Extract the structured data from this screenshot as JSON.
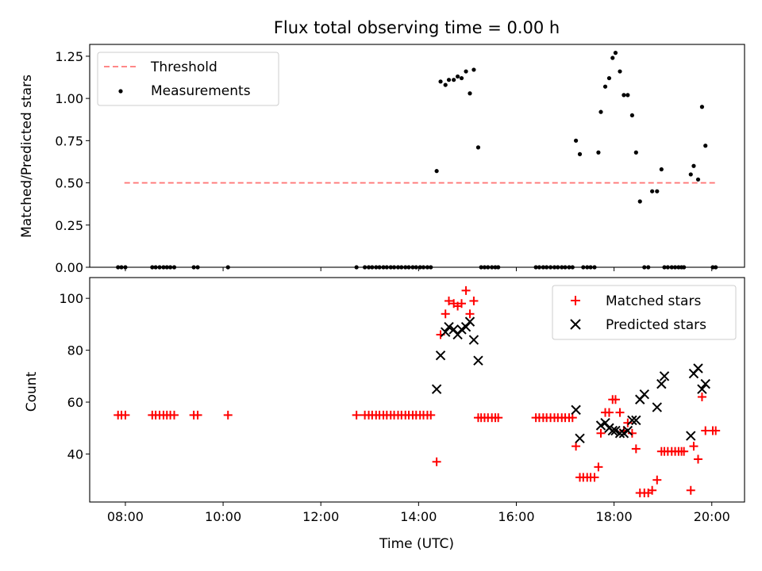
{
  "chart_data": [
    {
      "type": "scatter",
      "title": "Flux total observing time = 0.00 h",
      "xlabel": "",
      "ylabel": "Matched/Predicted stars",
      "xlim": [
        7.27,
        20.67
      ],
      "ylim": [
        0,
        1.32
      ],
      "yticks": [
        0,
        0.25,
        0.5,
        0.75,
        1.0,
        1.25
      ],
      "ytick_labels": [
        "0.00",
        "0.25",
        "0.50",
        "0.75",
        "1.00",
        "1.25"
      ],
      "legend_position": "upper left",
      "series": [
        {
          "name": "Threshold",
          "kind": "dashed-line",
          "color": "#ff7777",
          "x": [
            7.98,
            20.07
          ],
          "y": [
            0.5,
            0.5
          ]
        },
        {
          "name": "Measurements",
          "kind": "dots",
          "color": "#000000",
          "x": [
            7.85,
            7.92,
            8.0,
            8.55,
            8.62,
            8.7,
            8.78,
            8.85,
            8.92,
            9.0,
            9.4,
            9.48,
            10.1,
            12.73,
            12.9,
            12.98,
            13.05,
            13.13,
            13.2,
            13.28,
            13.35,
            13.43,
            13.5,
            13.58,
            13.65,
            13.73,
            13.8,
            13.88,
            13.95,
            14.03,
            14.1,
            14.18,
            14.25,
            14.37,
            14.45,
            14.55,
            14.62,
            14.72,
            14.8,
            14.88,
            14.97,
            15.05,
            15.13,
            15.22,
            15.28,
            15.35,
            15.42,
            15.5,
            15.57,
            15.63,
            16.4,
            16.47,
            16.55,
            16.62,
            16.7,
            16.78,
            16.85,
            16.93,
            17.0,
            17.08,
            17.15,
            17.22,
            17.3,
            17.37,
            17.45,
            17.52,
            17.6,
            17.68,
            17.73,
            17.82,
            17.9,
            17.97,
            18.03,
            18.12,
            18.2,
            18.28,
            18.37,
            18.45,
            18.53,
            18.62,
            18.7,
            18.78,
            18.88,
            18.97,
            19.03,
            19.1,
            19.18,
            19.25,
            19.32,
            19.38,
            19.43,
            19.57,
            19.63,
            19.72,
            19.8,
            19.87,
            20.02,
            20.08
          ],
          "y": [
            0,
            0,
            0,
            0,
            0,
            0,
            0,
            0,
            0,
            0,
            0,
            0,
            0,
            0,
            0,
            0,
            0,
            0,
            0,
            0,
            0,
            0,
            0,
            0,
            0,
            0,
            0,
            0,
            0,
            0,
            0,
            0,
            0,
            0.57,
            1.1,
            1.08,
            1.11,
            1.11,
            1.13,
            1.12,
            1.16,
            1.03,
            1.17,
            0.71,
            0,
            0,
            0,
            0,
            0,
            0,
            0,
            0,
            0,
            0,
            0,
            0,
            0,
            0,
            0,
            0,
            0,
            0.75,
            0.67,
            0,
            0,
            0,
            0,
            0.68,
            0.92,
            1.07,
            1.12,
            1.24,
            1.27,
            1.16,
            1.02,
            1.02,
            0.9,
            0.68,
            0.39,
            0,
            0,
            0.45,
            0.45,
            0.58,
            0,
            0,
            0,
            0,
            0,
            0,
            0,
            0.55,
            0.6,
            0.52,
            0.95,
            0.72,
            0,
            0
          ]
        }
      ]
    },
    {
      "type": "scatter",
      "title": "",
      "xlabel": "Time (UTC)",
      "ylabel": "Count",
      "xlim": [
        7.27,
        20.67
      ],
      "ylim": [
        21.5,
        108
      ],
      "yticks": [
        40,
        60,
        80,
        100
      ],
      "ytick_labels": [
        "40",
        "60",
        "80",
        "100"
      ],
      "xticks": [
        8,
        10,
        12,
        14,
        16,
        18,
        20
      ],
      "xtick_labels": [
        "08:00",
        "10:00",
        "12:00",
        "14:00",
        "16:00",
        "18:00",
        "20:00"
      ],
      "legend_position": "upper right",
      "series": [
        {
          "name": "Matched stars",
          "kind": "plus",
          "color": "#ff0000",
          "x": [
            7.85,
            7.92,
            8.0,
            8.55,
            8.62,
            8.7,
            8.78,
            8.85,
            8.92,
            9.0,
            9.4,
            9.48,
            10.1,
            12.73,
            12.9,
            12.98,
            13.05,
            13.13,
            13.2,
            13.28,
            13.35,
            13.43,
            13.5,
            13.58,
            13.65,
            13.73,
            13.8,
            13.88,
            13.95,
            14.03,
            14.1,
            14.18,
            14.25,
            14.37,
            14.45,
            14.55,
            14.62,
            14.72,
            14.8,
            14.88,
            14.97,
            15.05,
            15.13,
            15.22,
            15.28,
            15.35,
            15.42,
            15.5,
            15.57,
            15.63,
            16.4,
            16.47,
            16.55,
            16.62,
            16.7,
            16.78,
            16.85,
            16.93,
            17.0,
            17.08,
            17.15,
            17.22,
            17.3,
            17.37,
            17.45,
            17.52,
            17.6,
            17.68,
            17.73,
            17.82,
            17.9,
            17.97,
            18.03,
            18.12,
            18.2,
            18.28,
            18.37,
            18.45,
            18.53,
            18.62,
            18.7,
            18.78,
            18.88,
            18.97,
            19.03,
            19.1,
            19.18,
            19.25,
            19.32,
            19.38,
            19.43,
            19.57,
            19.63,
            19.72,
            19.8,
            19.87,
            20.02,
            20.08
          ],
          "y": [
            55,
            55,
            55,
            55,
            55,
            55,
            55,
            55,
            55,
            55,
            55,
            55,
            55,
            55,
            55,
            55,
            55,
            55,
            55,
            55,
            55,
            55,
            55,
            55,
            55,
            55,
            55,
            55,
            55,
            55,
            55,
            55,
            55,
            37,
            86,
            94,
            99,
            98,
            97,
            98,
            103,
            94,
            99,
            54,
            54,
            54,
            54,
            54,
            54,
            54,
            54,
            54,
            54,
            54,
            54,
            54,
            54,
            54,
            54,
            54,
            54,
            43,
            31,
            31,
            31,
            31,
            31,
            35,
            48,
            56,
            56,
            61,
            61,
            56,
            49,
            52,
            48,
            42,
            25,
            25,
            25,
            26,
            30,
            41,
            41,
            41,
            41,
            41,
            41,
            41,
            41,
            26,
            43,
            38,
            62,
            49,
            49,
            49
          ]
        },
        {
          "name": "Predicted stars",
          "kind": "x",
          "color": "#000000",
          "x": [
            14.37,
            14.45,
            14.55,
            14.62,
            14.72,
            14.8,
            14.88,
            14.97,
            15.05,
            15.13,
            15.22,
            17.22,
            17.3,
            17.73,
            17.82,
            17.9,
            17.97,
            18.03,
            18.12,
            18.2,
            18.28,
            18.37,
            18.45,
            18.53,
            18.62,
            18.88,
            18.97,
            19.03,
            19.57,
            19.63,
            19.72,
            19.8,
            19.87
          ],
          "y": [
            65,
            78,
            87,
            89,
            88,
            86,
            88,
            89,
            91,
            84,
            76,
            57,
            46,
            51,
            52,
            50,
            49,
            49,
            48,
            48,
            49,
            53,
            53,
            61,
            63,
            58,
            67,
            70,
            47,
            71,
            73,
            65,
            67
          ]
        }
      ]
    }
  ]
}
